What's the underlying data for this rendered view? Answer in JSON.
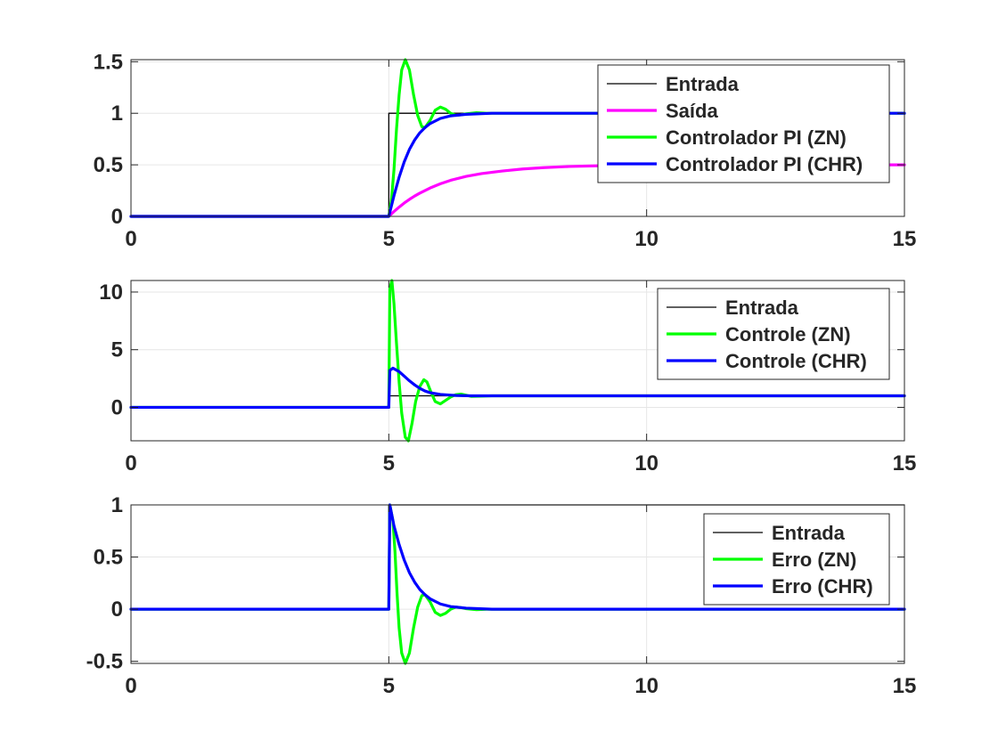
{
  "chart_data": [
    {
      "type": "line",
      "xlim": [
        0,
        15
      ],
      "ylim": [
        0,
        1.52
      ],
      "x_ticks": [
        "0",
        "5",
        "10",
        "15"
      ],
      "y_ticks": [
        "0",
        "0.5",
        "1",
        "1.5"
      ],
      "grid": true,
      "legend_position": "top-right",
      "series": [
        {
          "name": "Entrada",
          "color": "#000000",
          "points": [
            [
              0,
              0
            ],
            [
              5,
              0
            ],
            [
              5,
              1
            ],
            [
              15,
              1
            ]
          ]
        },
        {
          "name": "Saída",
          "color": "#ff00ff",
          "points": [
            [
              0,
              0
            ],
            [
              5,
              0
            ],
            [
              5.1,
              0.047
            ],
            [
              5.2,
              0.09
            ],
            [
              5.3,
              0.13
            ],
            [
              5.4,
              0.165
            ],
            [
              5.5,
              0.197
            ],
            [
              5.6,
              0.225
            ],
            [
              5.8,
              0.275
            ],
            [
              6.0,
              0.316
            ],
            [
              6.2,
              0.35
            ],
            [
              6.5,
              0.388
            ],
            [
              6.8,
              0.415
            ],
            [
              7.2,
              0.44
            ],
            [
              7.6,
              0.46
            ],
            [
              8.0,
              0.473
            ],
            [
              8.5,
              0.484
            ],
            [
              9.0,
              0.49
            ],
            [
              10,
              0.496
            ],
            [
              11,
              0.499
            ],
            [
              15,
              0.5
            ]
          ]
        },
        {
          "name": "Controlador PI (ZN)",
          "color": "#00ff00",
          "points": [
            [
              0,
              0
            ],
            [
              5,
              0
            ],
            [
              5.05,
              0.15
            ],
            [
              5.1,
              0.45
            ],
            [
              5.15,
              0.85
            ],
            [
              5.2,
              1.18
            ],
            [
              5.25,
              1.42
            ],
            [
              5.32,
              1.52
            ],
            [
              5.4,
              1.42
            ],
            [
              5.48,
              1.18
            ],
            [
              5.56,
              0.98
            ],
            [
              5.64,
              0.87
            ],
            [
              5.7,
              0.86
            ],
            [
              5.8,
              0.93
            ],
            [
              5.9,
              1.03
            ],
            [
              6.0,
              1.06
            ],
            [
              6.1,
              1.04
            ],
            [
              6.2,
              1.0
            ],
            [
              6.3,
              0.98
            ],
            [
              6.4,
              0.985
            ],
            [
              6.5,
              0.995
            ],
            [
              6.7,
              1.005
            ],
            [
              6.9,
              1.0
            ],
            [
              15,
              1.0
            ]
          ]
        },
        {
          "name": "Controlador PI (CHR)",
          "color": "#0000ff",
          "points": [
            [
              0,
              0
            ],
            [
              5,
              0
            ],
            [
              5.05,
              0.1
            ],
            [
              5.1,
              0.2
            ],
            [
              5.2,
              0.38
            ],
            [
              5.3,
              0.53
            ],
            [
              5.4,
              0.65
            ],
            [
              5.5,
              0.74
            ],
            [
              5.6,
              0.81
            ],
            [
              5.7,
              0.86
            ],
            [
              5.8,
              0.9
            ],
            [
              6.0,
              0.95
            ],
            [
              6.2,
              0.975
            ],
            [
              6.5,
              0.99
            ],
            [
              7.0,
              1.0
            ],
            [
              15,
              1.0
            ]
          ]
        }
      ]
    },
    {
      "type": "line",
      "xlim": [
        0,
        15
      ],
      "ylim": [
        -2.9,
        11
      ],
      "x_ticks": [
        "0",
        "5",
        "10",
        "15"
      ],
      "y_ticks": [
        "0",
        "5",
        "10"
      ],
      "grid": true,
      "legend_position": "top-right",
      "series": [
        {
          "name": "Entrada",
          "color": "#000000",
          "points": [
            [
              0,
              0
            ],
            [
              5,
              0
            ],
            [
              5,
              1
            ],
            [
              15,
              1
            ]
          ]
        },
        {
          "name": "Controle (ZN)",
          "color": "#00ff00",
          "points": [
            [
              0,
              0
            ],
            [
              5,
              0
            ],
            [
              5.02,
              10.3
            ],
            [
              5.06,
              11
            ],
            [
              5.1,
              9.0
            ],
            [
              5.15,
              5.5
            ],
            [
              5.2,
              2.2
            ],
            [
              5.25,
              -0.5
            ],
            [
              5.32,
              -2.6
            ],
            [
              5.38,
              -2.9
            ],
            [
              5.45,
              -1.4
            ],
            [
              5.52,
              0.5
            ],
            [
              5.6,
              1.8
            ],
            [
              5.68,
              2.4
            ],
            [
              5.74,
              2.2
            ],
            [
              5.82,
              1.3
            ],
            [
              5.9,
              0.5
            ],
            [
              6.0,
              0.3
            ],
            [
              6.1,
              0.6
            ],
            [
              6.2,
              0.9
            ],
            [
              6.3,
              1.1
            ],
            [
              6.4,
              1.15
            ],
            [
              6.5,
              1.05
            ],
            [
              6.6,
              0.95
            ],
            [
              6.8,
              0.97
            ],
            [
              7.0,
              1.0
            ],
            [
              15,
              1.0
            ]
          ]
        },
        {
          "name": "Controle (CHR)",
          "color": "#0000ff",
          "points": [
            [
              0,
              0
            ],
            [
              5,
              0
            ],
            [
              5.02,
              3.2
            ],
            [
              5.08,
              3.4
            ],
            [
              5.2,
              3.1
            ],
            [
              5.3,
              2.7
            ],
            [
              5.4,
              2.3
            ],
            [
              5.5,
              1.95
            ],
            [
              5.6,
              1.65
            ],
            [
              5.7,
              1.42
            ],
            [
              5.8,
              1.27
            ],
            [
              6.0,
              1.12
            ],
            [
              6.3,
              1.03
            ],
            [
              6.6,
              1.0
            ],
            [
              15,
              1.0
            ]
          ]
        }
      ]
    },
    {
      "type": "line",
      "xlim": [
        0,
        15
      ],
      "ylim": [
        -0.52,
        1.0
      ],
      "x_ticks": [
        "0",
        "5",
        "10",
        "15"
      ],
      "y_ticks": [
        "-0.5",
        "0",
        "0.5",
        "1"
      ],
      "grid": true,
      "legend_position": "top-right",
      "series": [
        {
          "name": "Entrada",
          "color": "#000000",
          "points": [
            [
              0,
              0
            ],
            [
              5,
              0
            ],
            [
              5,
              1
            ],
            [
              15,
              1
            ]
          ]
        },
        {
          "name": "Erro (ZN)",
          "color": "#00ff00",
          "points": [
            [
              0,
              0
            ],
            [
              5,
              0
            ],
            [
              5.02,
              1.0
            ],
            [
              5.08,
              0.85
            ],
            [
              5.12,
              0.55
            ],
            [
              5.16,
              0.15
            ],
            [
              5.2,
              -0.18
            ],
            [
              5.25,
              -0.42
            ],
            [
              5.32,
              -0.52
            ],
            [
              5.4,
              -0.42
            ],
            [
              5.48,
              -0.18
            ],
            [
              5.56,
              0.02
            ],
            [
              5.64,
              0.13
            ],
            [
              5.7,
              0.14
            ],
            [
              5.8,
              0.07
            ],
            [
              5.9,
              -0.03
            ],
            [
              6.0,
              -0.06
            ],
            [
              6.1,
              -0.04
            ],
            [
              6.2,
              0.0
            ],
            [
              6.3,
              0.02
            ],
            [
              6.4,
              0.015
            ],
            [
              6.5,
              0.005
            ],
            [
              6.7,
              -0.005
            ],
            [
              6.9,
              0.0
            ],
            [
              15,
              0.0
            ]
          ]
        },
        {
          "name": "Erro (CHR)",
          "color": "#0000ff",
          "points": [
            [
              0,
              0
            ],
            [
              5,
              0
            ],
            [
              5.02,
              1.0
            ],
            [
              5.1,
              0.8
            ],
            [
              5.2,
              0.62
            ],
            [
              5.3,
              0.47
            ],
            [
              5.4,
              0.35
            ],
            [
              5.5,
              0.26
            ],
            [
              5.6,
              0.19
            ],
            [
              5.7,
              0.14
            ],
            [
              5.8,
              0.1
            ],
            [
              6.0,
              0.05
            ],
            [
              6.2,
              0.025
            ],
            [
              6.5,
              0.01
            ],
            [
              7.0,
              0.0
            ],
            [
              15,
              0.0
            ]
          ]
        }
      ]
    }
  ]
}
